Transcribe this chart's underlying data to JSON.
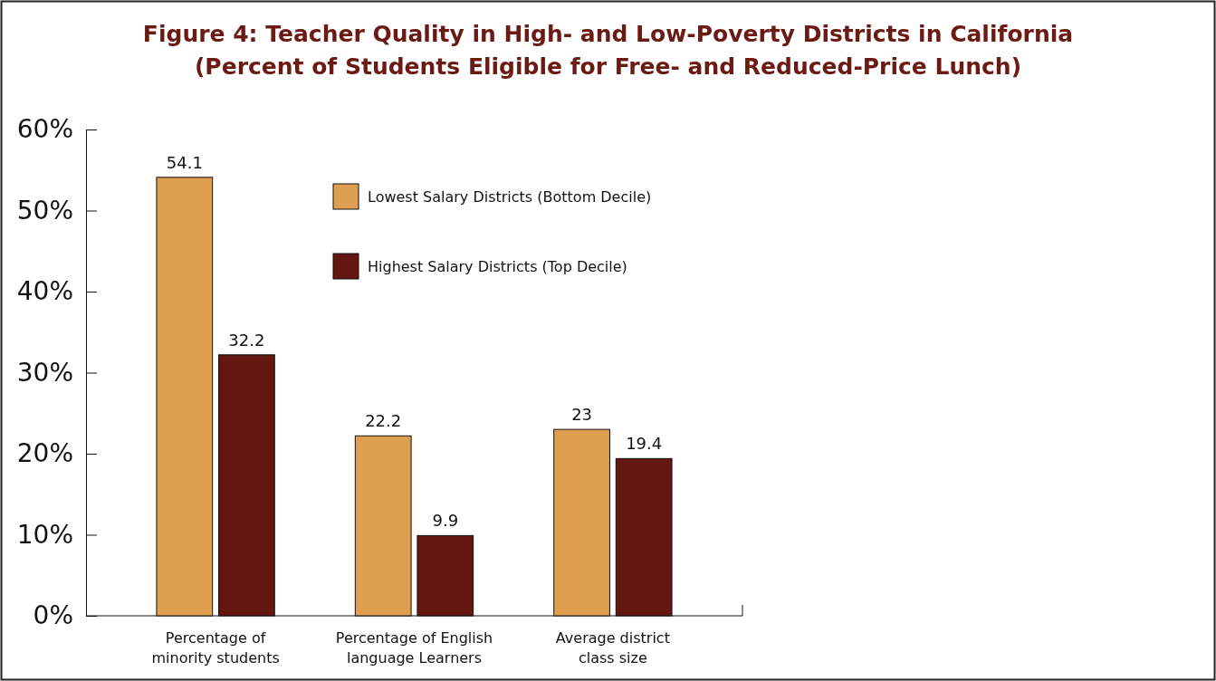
{
  "chart_data": {
    "type": "bar",
    "title": "Figure 4: Teacher Quality in High- and Low-Poverty Districts in California",
    "subtitle": "(Percent of Students Eligible for Free- and Reduced-Price Lunch)",
    "categories": [
      "Percentage of\nminority students",
      "Percentage of English\nlanguage Learners",
      "Average district\nclass size"
    ],
    "series": [
      {
        "name": "Lowest Salary Districts (Bottom Decile)",
        "color": "#de9f50",
        "values": [
          54.1,
          22.2,
          23
        ]
      },
      {
        "name": "Highest Salary Districts (Top Decile)",
        "color": "#641610",
        "values": [
          32.2,
          9.9,
          19.4
        ]
      }
    ],
    "ylim": [
      0,
      60
    ],
    "yticks": [
      {
        "value": 0,
        "label": "0%"
      },
      {
        "value": 10,
        "label": "10%"
      },
      {
        "value": 20,
        "label": "20%"
      },
      {
        "value": 30,
        "label": "30%"
      },
      {
        "value": 40,
        "label": "40%"
      },
      {
        "value": 50,
        "label": "50%"
      },
      {
        "value": 60,
        "label": "60%"
      }
    ],
    "data_labels": true,
    "legend": "top",
    "grid": false
  }
}
